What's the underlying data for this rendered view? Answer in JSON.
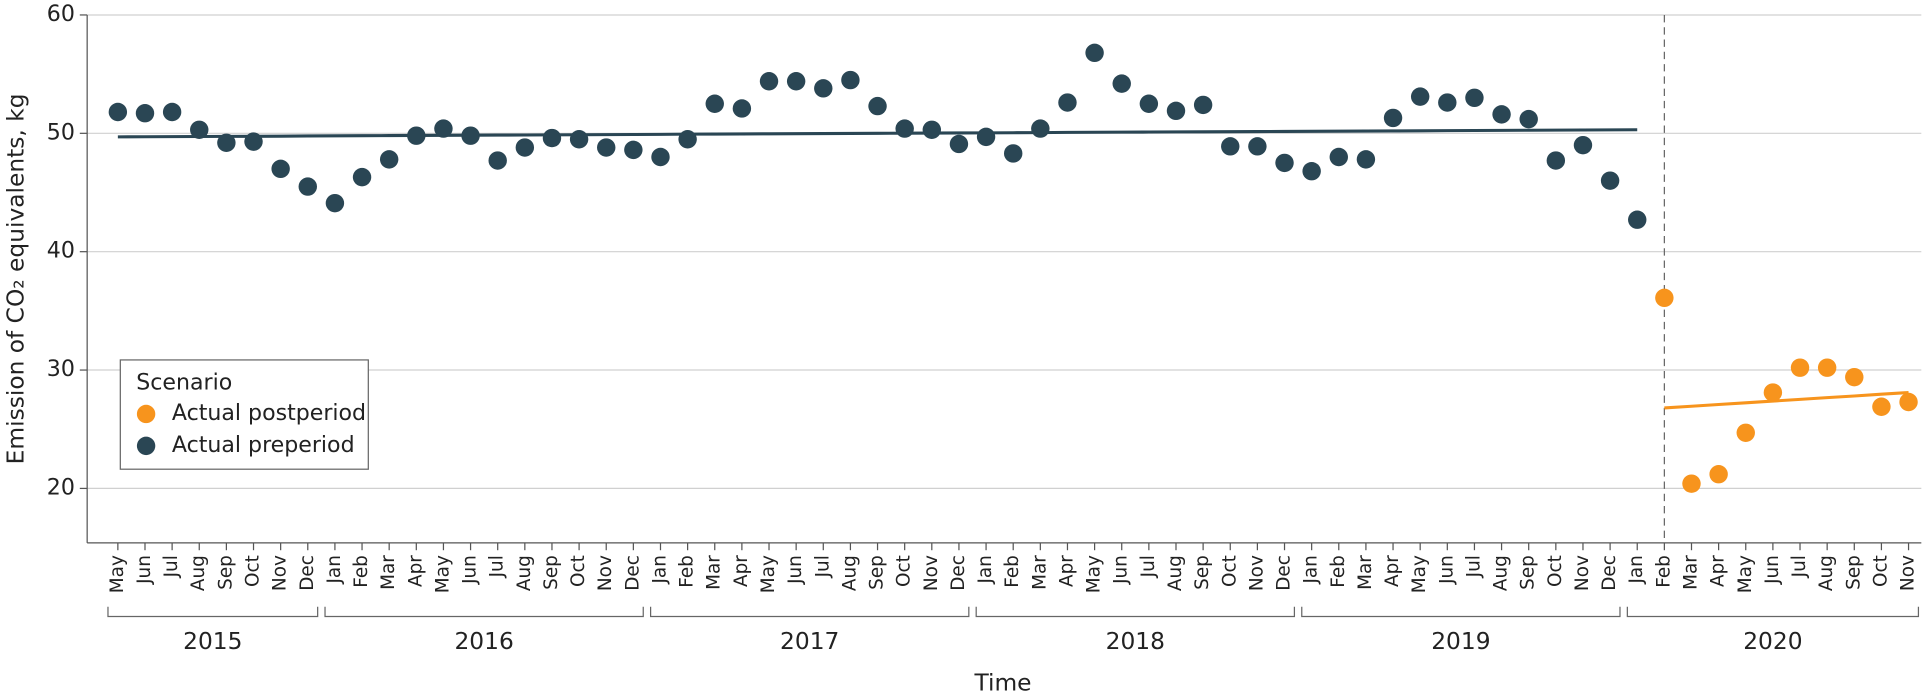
{
  "chart_data": {
    "type": "scatter",
    "xlabel": "Time",
    "ylabel": "Emission of CO₂ equivalents, kg",
    "legend": {
      "title": "Scenario",
      "position": "lower left"
    },
    "grid": true,
    "ylim": [
      15.4,
      60
    ],
    "yticks": [
      20,
      30,
      40,
      50,
      60
    ],
    "years": [
      "2015",
      "2016",
      "2017",
      "2018",
      "2019",
      "2020"
    ],
    "categories": [
      "May",
      "Jun",
      "Jul",
      "Aug",
      "Sep",
      "Oct",
      "Nov",
      "Dec",
      "Jan",
      "Feb",
      "Mar",
      "Apr",
      "May",
      "Jun",
      "Jul",
      "Aug",
      "Sep",
      "Oct",
      "Nov",
      "Dec",
      "Jan",
      "Feb",
      "Mar",
      "Apr",
      "May",
      "Jun",
      "Jul",
      "Aug",
      "Sep",
      "Oct",
      "Nov",
      "Dec",
      "Jan",
      "Feb",
      "Mar",
      "Apr",
      "May",
      "Jun",
      "Jul",
      "Aug",
      "Sep",
      "Oct",
      "Nov",
      "Dec",
      "Jan",
      "Feb",
      "Mar",
      "Apr",
      "May",
      "Jun",
      "Jul",
      "Aug",
      "Sep",
      "Oct",
      "Nov",
      "Dec",
      "Jan",
      "Feb",
      "Mar",
      "Apr",
      "May",
      "Jun",
      "Jul",
      "Aug",
      "Sep",
      "Oct",
      "Nov"
    ],
    "series": [
      {
        "name": "Actual postperiod",
        "color": "#f7941d",
        "values": [
          null,
          null,
          null,
          null,
          null,
          null,
          null,
          null,
          null,
          null,
          null,
          null,
          null,
          null,
          null,
          null,
          null,
          null,
          null,
          null,
          null,
          null,
          null,
          null,
          null,
          null,
          null,
          null,
          null,
          null,
          null,
          null,
          null,
          null,
          null,
          null,
          null,
          null,
          null,
          null,
          null,
          null,
          null,
          null,
          null,
          null,
          null,
          null,
          null,
          null,
          null,
          null,
          null,
          null,
          null,
          null,
          null,
          36.1,
          20.4,
          21.2,
          24.7,
          28.1,
          30.2,
          30.2,
          29.4,
          26.9,
          27.3
        ]
      },
      {
        "name": "Actual preperiod",
        "color": "#2a4654",
        "values": [
          51.8,
          51.7,
          51.8,
          50.3,
          49.2,
          49.3,
          47.0,
          45.5,
          44.1,
          46.3,
          47.8,
          49.8,
          50.4,
          49.8,
          47.7,
          48.8,
          49.6,
          49.5,
          48.8,
          48.6,
          48.0,
          49.5,
          52.5,
          52.1,
          54.4,
          54.4,
          53.8,
          54.5,
          52.3,
          50.4,
          50.3,
          49.1,
          49.7,
          48.3,
          50.4,
          52.6,
          56.8,
          54.2,
          52.5,
          51.9,
          52.4,
          48.9,
          48.9,
          47.5,
          46.8,
          48.0,
          47.8,
          51.3,
          53.1,
          52.6,
          53.0,
          51.6,
          51.2,
          47.7,
          49.0,
          46.0,
          42.7,
          null,
          null,
          null,
          null,
          null,
          null,
          null,
          null,
          null,
          null
        ]
      }
    ],
    "trend_lines": [
      {
        "color": "#2a4654",
        "values": [
          49.7,
          49.71,
          49.72,
          49.73,
          49.74,
          49.75,
          49.76,
          49.78,
          49.79,
          49.8,
          49.81,
          49.82,
          49.83,
          49.84,
          49.85,
          49.86,
          49.87,
          49.88,
          49.89,
          49.9,
          49.91,
          49.93,
          49.94,
          49.95,
          49.96,
          49.97,
          49.98,
          49.99,
          50.0,
          50.01,
          50.02,
          50.03,
          50.04,
          50.05,
          50.06,
          50.08,
          50.09,
          50.1,
          50.11,
          50.12,
          50.13,
          50.14,
          50.15,
          50.16,
          50.17,
          50.18,
          50.19,
          50.2,
          50.21,
          50.23,
          50.24,
          50.25,
          50.26,
          50.27,
          50.28,
          50.29,
          50.3,
          null,
          null,
          null,
          null,
          null,
          null,
          null,
          null,
          null,
          null
        ]
      },
      {
        "color": "#f7941d",
        "values": [
          null,
          null,
          null,
          null,
          null,
          null,
          null,
          null,
          null,
          null,
          null,
          null,
          null,
          null,
          null,
          null,
          null,
          null,
          null,
          null,
          null,
          null,
          null,
          null,
          null,
          null,
          null,
          null,
          null,
          null,
          null,
          null,
          null,
          null,
          null,
          null,
          null,
          null,
          null,
          null,
          null,
          null,
          null,
          null,
          null,
          null,
          null,
          null,
          null,
          null,
          null,
          null,
          null,
          null,
          null,
          null,
          null,
          26.8,
          26.94,
          27.09,
          27.23,
          27.38,
          27.52,
          27.67,
          27.81,
          27.96,
          28.1
        ]
      }
    ]
  }
}
